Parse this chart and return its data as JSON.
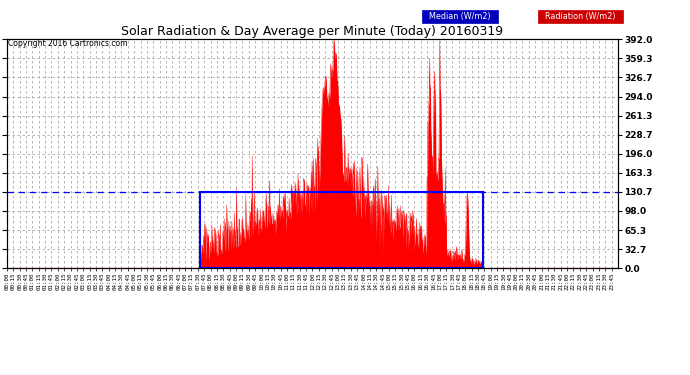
{
  "title": "Solar Radiation & Day Average per Minute (Today) 20160319",
  "copyright": "Copyright 2016 Cartronics.com",
  "ylabel_right_ticks": [
    0.0,
    32.7,
    65.3,
    98.0,
    130.7,
    163.3,
    196.0,
    228.7,
    261.3,
    294.0,
    326.7,
    359.3,
    392.0
  ],
  "ymax": 392.0,
  "ymin": 0.0,
  "legend_median_label": "Median (W/m2)",
  "legend_radiation_label": "Radiation (W/m2)",
  "median_color": "#0000ff",
  "radiation_color": "#ff0000",
  "bg_color": "#ffffff",
  "grid_color": "#aaaaaa",
  "title_color": "#000000",
  "copyright_color": "#000000",
  "median_level": 130.7,
  "sunrise_minute": 456,
  "sunset_minute": 1121,
  "total_minutes": 1440
}
